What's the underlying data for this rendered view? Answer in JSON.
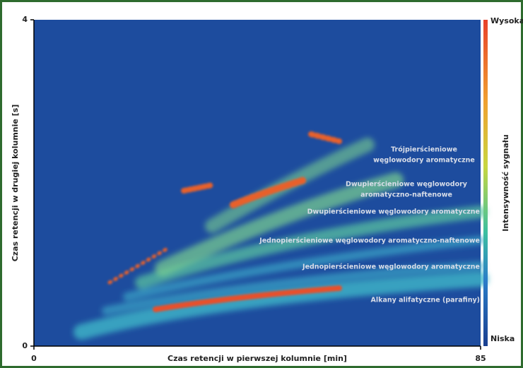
{
  "chart_data": {
    "type": "heatmap",
    "x_label": "Czas retencji w pierwszej kolumnie [min]",
    "y_label": "Czas retencji w drugiej kolumnie [s]",
    "xlim": [
      0,
      85
    ],
    "xticks": [
      0,
      85
    ],
    "ylim": [
      0,
      4
    ],
    "yticks": [
      0,
      4
    ],
    "colorbar": {
      "title": "Intensywność sygnału",
      "high_label": "Wysoka",
      "low_label": "Niska"
    },
    "annotations": [
      [
        "Trójpierścieniowe",
        "węglowodory aromatyczne"
      ],
      [
        "Dwupierścieniowe węglowodory",
        "aromatyczno-naftenowe"
      ],
      [
        "Dwupierścieniowe węglowodory aromatyczne"
      ],
      [
        "Jednopierścieniowe węglowodory aromatyczno-naftenowe"
      ],
      [
        "Jednopierścieniowe węglowodory aromatyczne"
      ],
      [
        "Alkany alifatyczne (parafiny)"
      ]
    ]
  }
}
